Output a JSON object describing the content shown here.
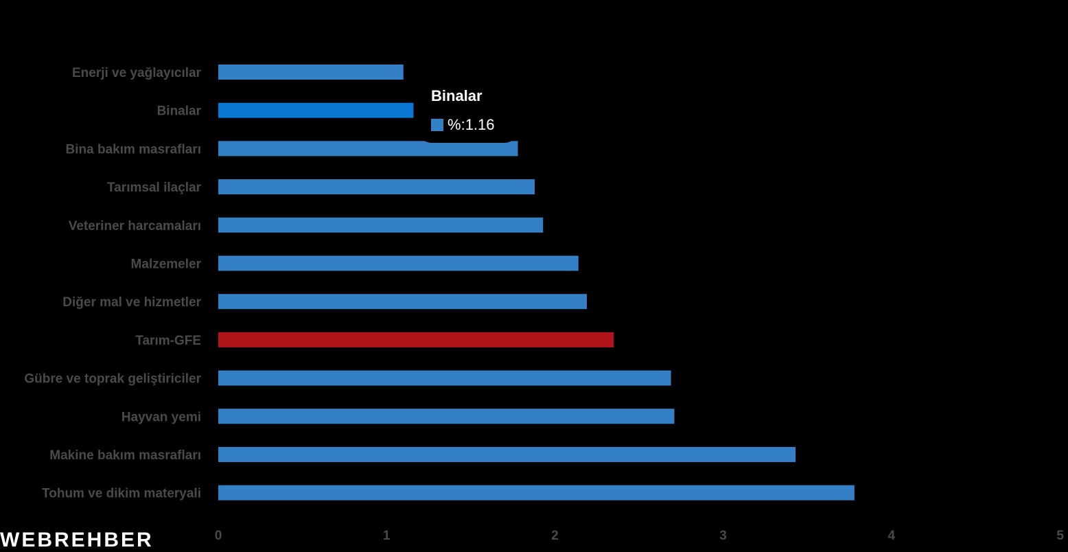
{
  "chart_data": {
    "type": "bar",
    "orientation": "horizontal",
    "categories": [
      "Enerji  ve yağlayıcılar",
      "Binalar",
      "Bina bakım masrafları",
      "Tarımsal ilaçlar",
      "Veteriner harcamaları",
      "Malzemeler",
      "Diğer mal ve hizmetler",
      "Tarım-GFE",
      "Gübre ve toprak geliştiriciler",
      "Hayvan yemi",
      "Makine bakım masrafları",
      "Tohum ve dikim materyali"
    ],
    "values": [
      1.1,
      1.16,
      1.78,
      1.88,
      1.93,
      2.14,
      2.19,
      2.35,
      2.69,
      2.71,
      3.43,
      3.78
    ],
    "highlight_index": 7,
    "hover_index": 1,
    "xlim": [
      0,
      5
    ],
    "xticks": [
      "0",
      "1",
      "2",
      "3",
      "4",
      "5"
    ],
    "grid": false,
    "colors": {
      "bar": "#3480c4",
      "bar_hover": "#0a78d2",
      "highlight": "#b1151c",
      "label": "#4a4a4a"
    }
  },
  "tooltip": {
    "title": "Binalar",
    "series_label": "%",
    "value": "1.16"
  },
  "logo": {
    "text": "WEBREHBER"
  }
}
